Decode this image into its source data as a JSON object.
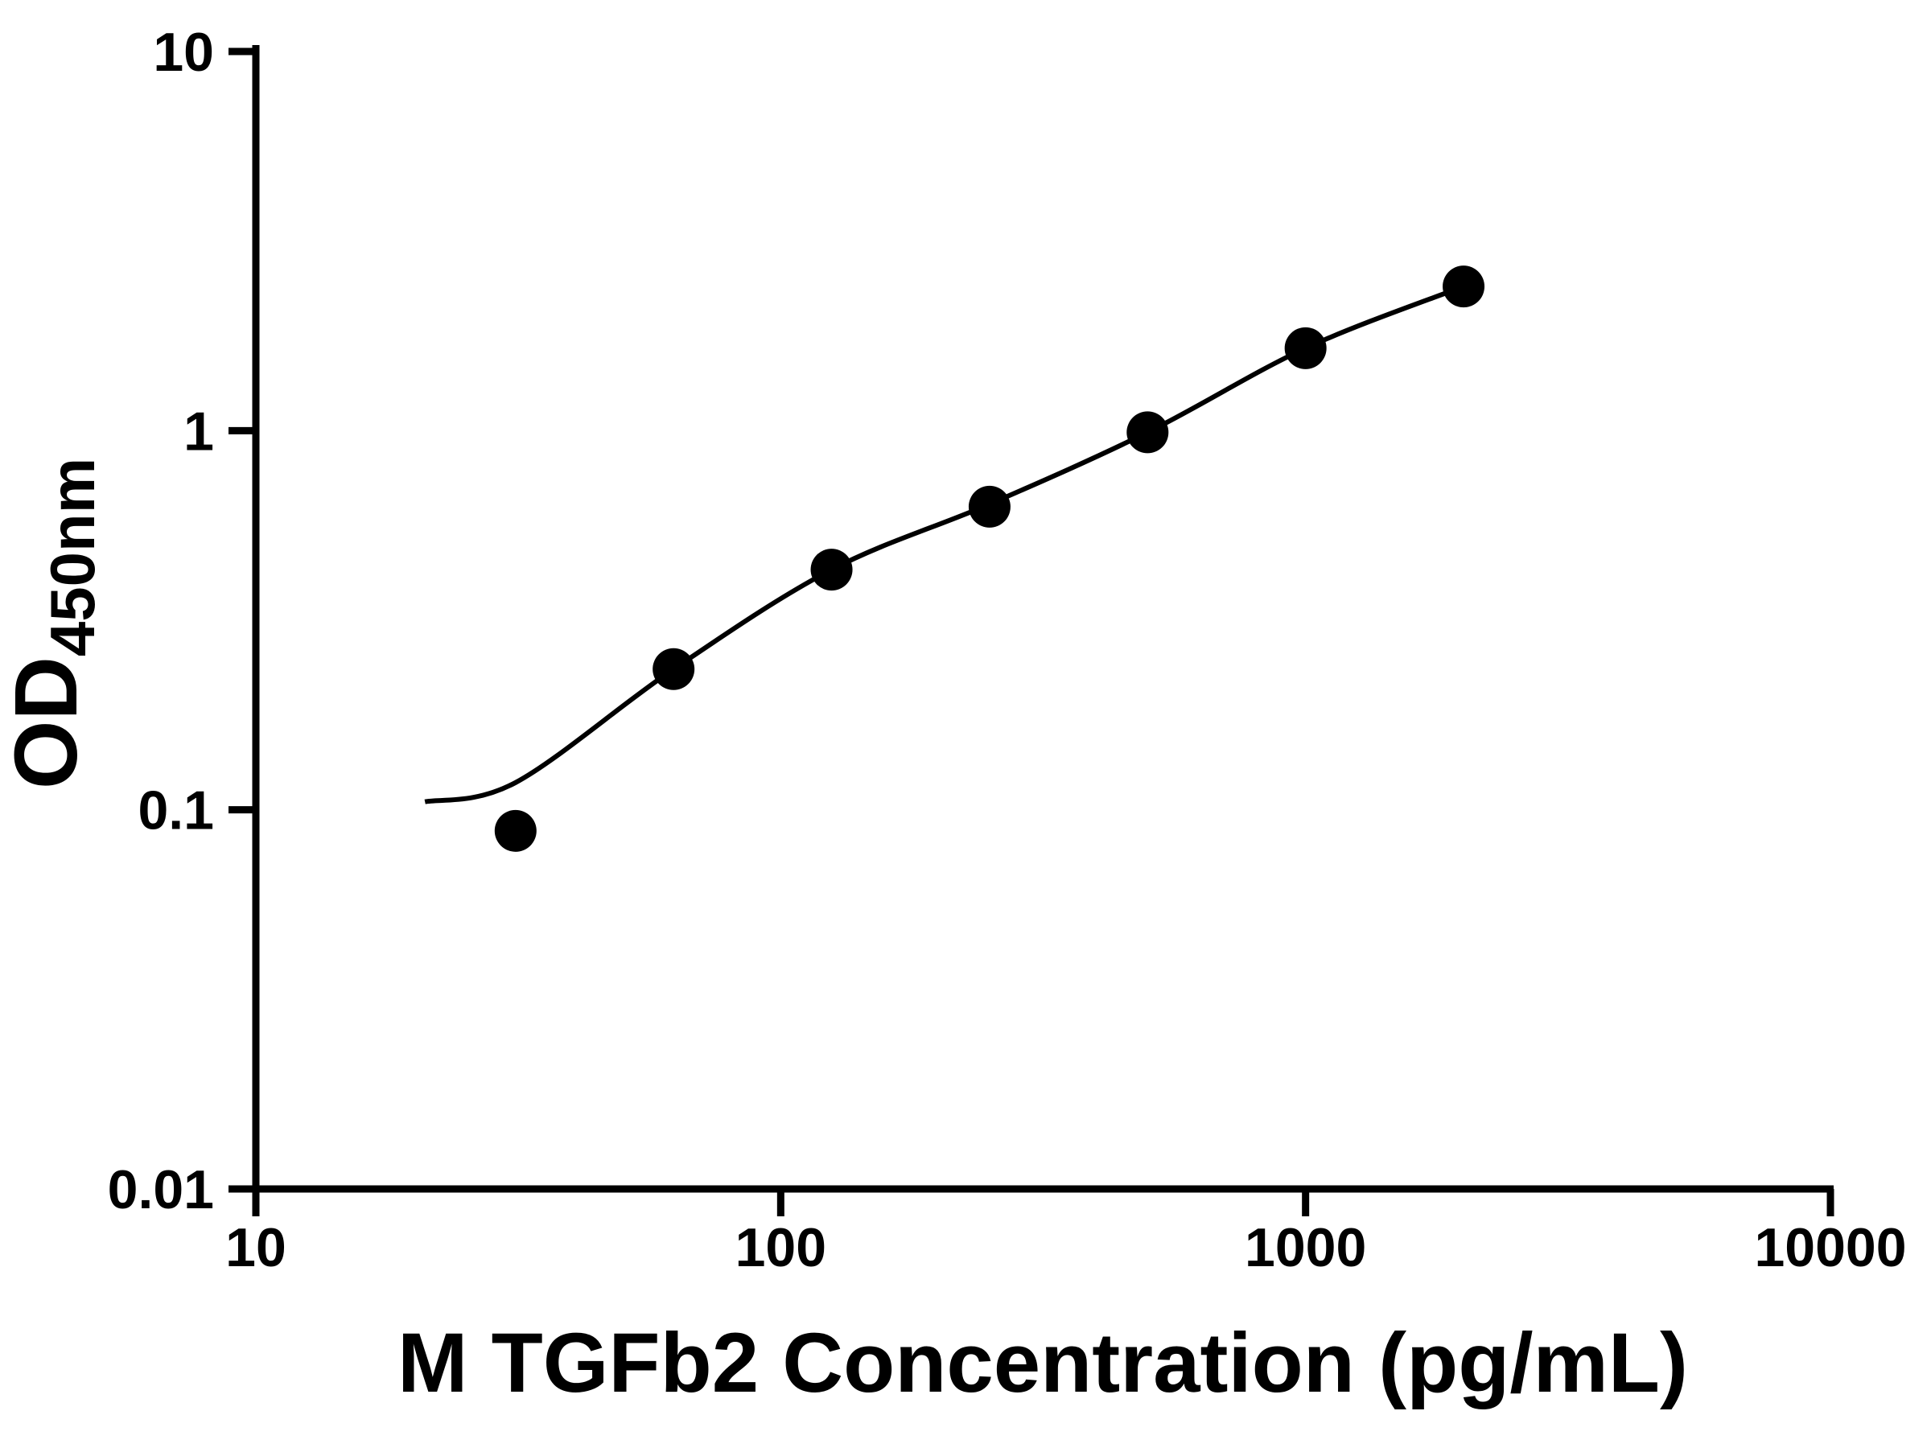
{
  "chart_data": {
    "type": "scatter",
    "title": "",
    "xlabel": "M TGFb2 Concentration (pg/mL)",
    "ylabel_main": "OD",
    "ylabel_sub": "450nm",
    "x_scale": "log",
    "y_scale": "log",
    "xlim": [
      10,
      10000
    ],
    "ylim": [
      0.01,
      10
    ],
    "grid": false,
    "legend": "none",
    "x_ticks": [
      {
        "value": 10,
        "label": "10"
      },
      {
        "value": 100,
        "label": "100"
      },
      {
        "value": 1000,
        "label": "1000"
      },
      {
        "value": 10000,
        "label": "10000"
      }
    ],
    "y_ticks": [
      {
        "value": 0.01,
        "label": "0.01"
      },
      {
        "value": 0.1,
        "label": "0.1"
      },
      {
        "value": 1,
        "label": "1"
      },
      {
        "value": 10,
        "label": "10"
      }
    ],
    "series": [
      {
        "name": "standard-points",
        "type": "scatter",
        "marker": "filled-circle",
        "x": [
          31.25,
          62.5,
          125,
          250,
          500,
          1000,
          2000
        ],
        "y": [
          0.088,
          0.235,
          0.43,
          0.63,
          0.99,
          1.65,
          2.4
        ]
      },
      {
        "name": "fit-curve",
        "type": "line",
        "x": [
          21,
          31.25,
          62.5,
          125,
          250,
          500,
          1000,
          2000
        ],
        "y": [
          0.105,
          0.118,
          0.235,
          0.43,
          0.64,
          0.99,
          1.65,
          2.4
        ]
      }
    ],
    "colors": {
      "points": "#000000",
      "curve": "#000000",
      "axis": "#000000",
      "background": "#ffffff"
    }
  }
}
